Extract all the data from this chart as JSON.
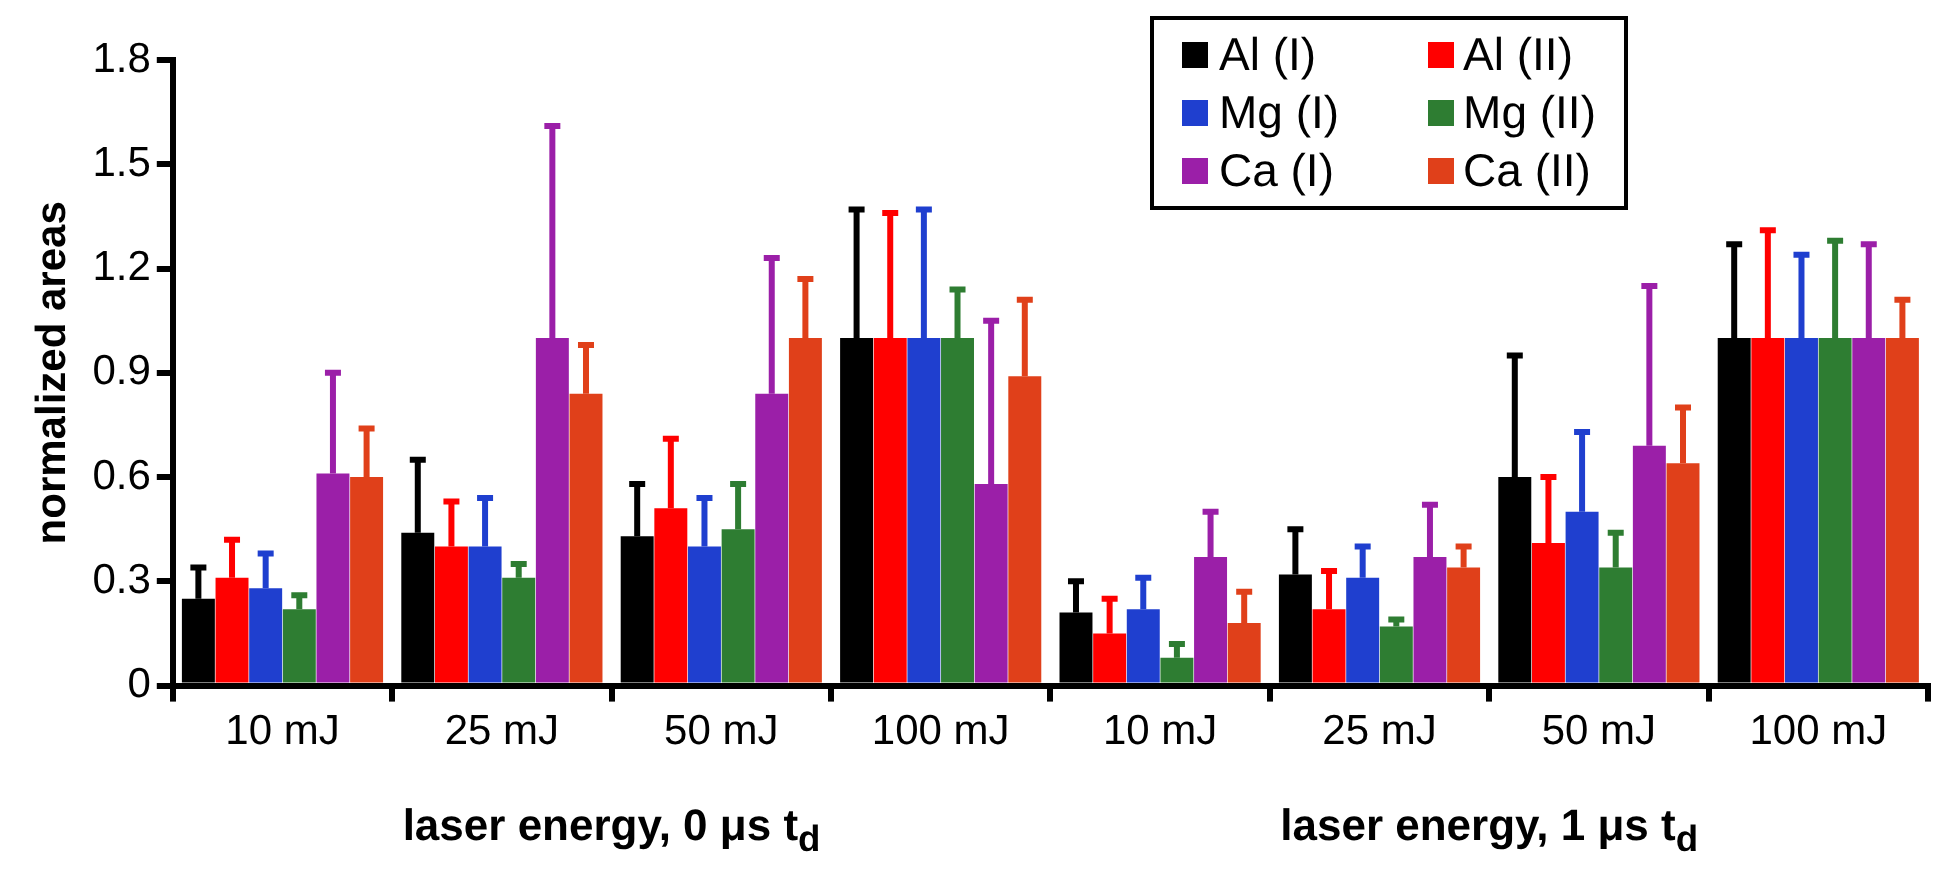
{
  "chart_data": {
    "type": "bar",
    "ylabel": "normalized areas",
    "xlabel": "laser energy, 0 μs t$_{d}$",
    "annotations": [
      "laser energy, 1 μs t$_{d}$"
    ],
    "categories": [
      "10 mJ",
      "25 mJ",
      "50 mJ",
      "100 mJ",
      "10 mJ",
      "25 mJ",
      "50 mJ",
      "100 mJ"
    ],
    "series": [
      {
        "name": "Al (I)",
        "color": "#000000",
        "values": [
          0.25,
          0.44,
          0.43,
          1.0,
          0.21,
          0.32,
          0.6,
          1.0
        ],
        "errors": [
          [
            0.25,
            0.34
          ],
          [
            0.44,
            0.65
          ],
          [
            0.43,
            0.58
          ],
          [
            1.0,
            1.37
          ],
          [
            0.21,
            0.3
          ],
          [
            0.32,
            0.45
          ],
          [
            0.6,
            0.95
          ],
          [
            1.0,
            1.27
          ]
        ]
      },
      {
        "name": "Al (II)",
        "color": "#ff0000",
        "values": [
          0.31,
          0.4,
          0.51,
          1.0,
          0.15,
          0.22,
          0.41,
          1.0
        ],
        "errors": [
          [
            0.31,
            0.42
          ],
          [
            0.4,
            0.53
          ],
          [
            0.51,
            0.71
          ],
          [
            1.0,
            1.36
          ],
          [
            0.15,
            0.25
          ],
          [
            0.22,
            0.33
          ],
          [
            0.41,
            0.6
          ],
          [
            1.0,
            1.31
          ]
        ]
      },
      {
        "name": "Mg (I)",
        "color": "#1f3fcf",
        "values": [
          0.28,
          0.4,
          0.4,
          1.0,
          0.22,
          0.31,
          0.5,
          1.0
        ],
        "errors": [
          [
            0.28,
            0.38
          ],
          [
            0.4,
            0.54
          ],
          [
            0.4,
            0.54
          ],
          [
            1.0,
            1.37
          ],
          [
            0.22,
            0.31
          ],
          [
            0.31,
            0.4
          ],
          [
            0.5,
            0.73
          ],
          [
            1.0,
            1.24
          ]
        ]
      },
      {
        "name": "Mg (II)",
        "color": "#2e7d32",
        "values": [
          0.22,
          0.31,
          0.45,
          1.0,
          0.08,
          0.17,
          0.34,
          1.0
        ],
        "errors": [
          [
            0.22,
            0.26
          ],
          [
            0.31,
            0.35
          ],
          [
            0.45,
            0.58
          ],
          [
            1.0,
            1.14
          ],
          [
            0.08,
            0.12
          ],
          [
            0.17,
            0.19
          ],
          [
            0.34,
            0.44
          ],
          [
            1.0,
            1.28
          ]
        ]
      },
      {
        "name": "Ca (I)",
        "color": "#9b1fa8",
        "values": [
          0.61,
          1.0,
          0.84,
          0.58,
          0.37,
          0.37,
          0.69,
          1.0
        ],
        "errors": [
          [
            0.61,
            0.9
          ],
          [
            1.0,
            1.61
          ],
          [
            0.84,
            1.23
          ],
          [
            0.58,
            1.05
          ],
          [
            0.37,
            0.5
          ],
          [
            0.37,
            0.52
          ],
          [
            0.69,
            1.15
          ],
          [
            1.0,
            1.27
          ]
        ]
      },
      {
        "name": "Ca (II)",
        "color": "#e0401a",
        "values": [
          0.6,
          0.84,
          1.0,
          0.89,
          0.18,
          0.34,
          0.64,
          1.0
        ],
        "errors": [
          [
            0.6,
            0.74
          ],
          [
            0.84,
            0.98
          ],
          [
            1.0,
            1.17
          ],
          [
            0.89,
            1.11
          ],
          [
            0.18,
            0.27
          ],
          [
            0.34,
            0.4
          ],
          [
            0.64,
            0.8
          ],
          [
            1.0,
            1.11
          ]
        ]
      }
    ],
    "ylim": [
      0,
      1.8
    ],
    "yticks": [
      0,
      0.3,
      0.6,
      0.9,
      1.2,
      1.5,
      1.8
    ],
    "grid": false,
    "legend": "top right"
  }
}
